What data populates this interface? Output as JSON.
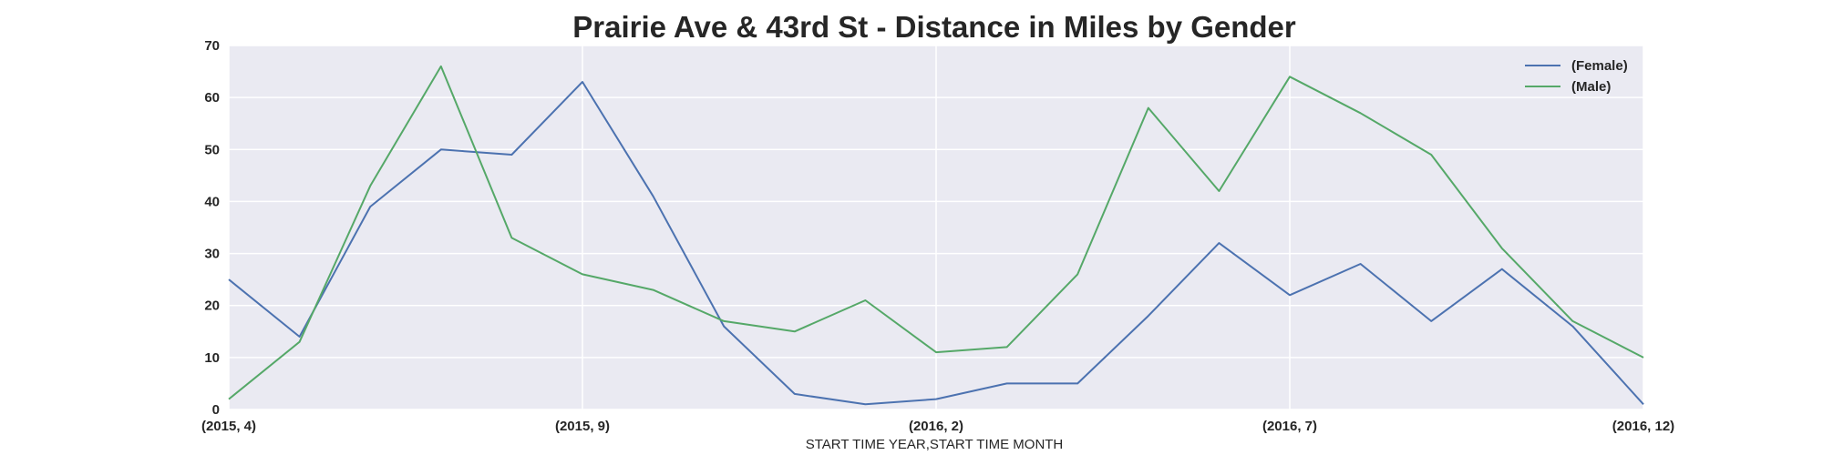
{
  "chart_data": {
    "type": "line",
    "title": "Prairie Ave & 43rd St - Distance in Miles by Gender",
    "xlabel": "START TIME YEAR,START TIME MONTH",
    "ylabel": "",
    "x": [
      "(2015, 4)",
      "(2015, 5)",
      "(2015, 6)",
      "(2015, 7)",
      "(2015, 8)",
      "(2015, 9)",
      "(2015, 10)",
      "(2015, 11)",
      "(2015, 12)",
      "(2016, 1)",
      "(2016, 2)",
      "(2016, 3)",
      "(2016, 4)",
      "(2016, 5)",
      "(2016, 6)",
      "(2016, 7)",
      "(2016, 8)",
      "(2016, 9)",
      "(2016, 10)",
      "(2016, 11)",
      "(2016, 12)"
    ],
    "x_tick_labels": [
      "(2015, 4)",
      "(2015, 9)",
      "(2016, 2)",
      "(2016, 7)",
      "(2016, 12)"
    ],
    "ylim": [
      0,
      70
    ],
    "y_ticks": [
      "0",
      "10",
      "20",
      "30",
      "40",
      "50",
      "60",
      "70"
    ],
    "grid": true,
    "legend_position": "top-right",
    "series": [
      {
        "name": "(Female)",
        "color": "#4c72b0",
        "values": [
          25,
          14,
          39,
          50,
          49,
          63,
          41,
          16,
          3,
          1,
          2,
          5,
          5,
          18,
          32,
          22,
          28,
          17,
          27,
          16,
          1
        ]
      },
      {
        "name": "(Male)",
        "color": "#55a868",
        "values": [
          2,
          13,
          43,
          66,
          33,
          26,
          23,
          17,
          15,
          21,
          11,
          12,
          26,
          58,
          42,
          64,
          57,
          49,
          31,
          17,
          10
        ]
      }
    ]
  }
}
